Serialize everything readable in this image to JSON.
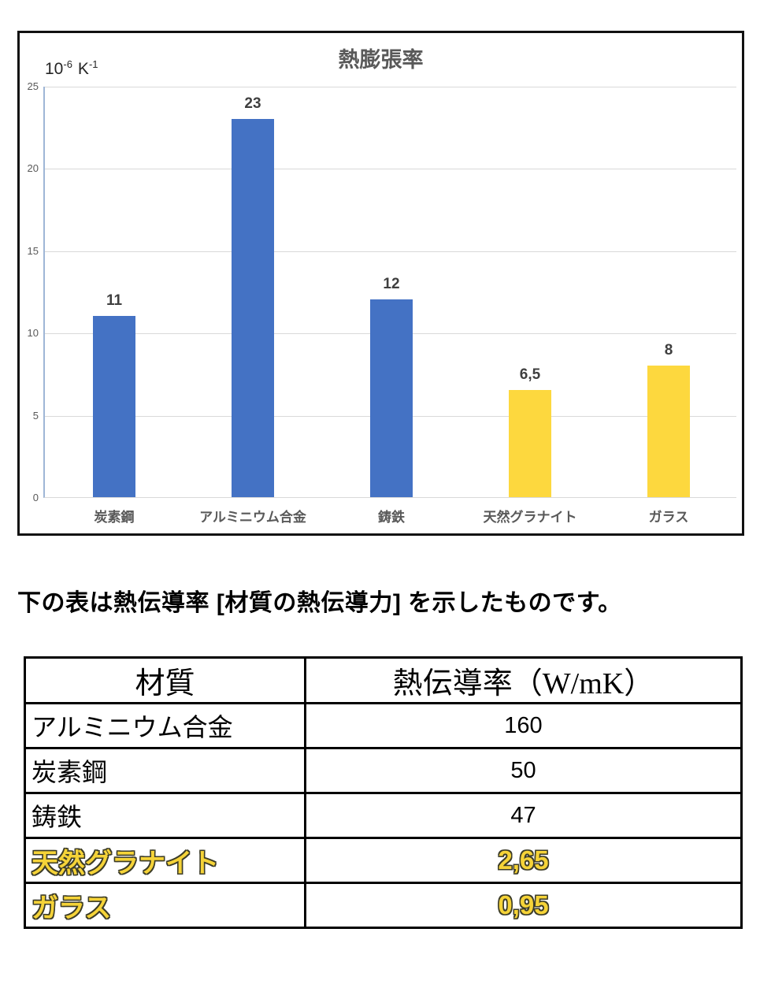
{
  "chart": {
    "unit": {
      "base": "10",
      "base_exp": "-6",
      "unit": "K",
      "unit_exp": "-1"
    }
  },
  "chart_data": {
    "type": "bar",
    "title": "熱膨張率",
    "ylabel": "10⁻⁶ K⁻¹",
    "xlabel": "",
    "categories": [
      "炭素鋼",
      "アルミニウム合金",
      "鋳鉄",
      "天然グラナイト",
      "ガラス"
    ],
    "values": [
      11,
      23,
      12,
      6.5,
      8
    ],
    "value_labels": [
      "11",
      "23",
      "12",
      "6,5",
      "8"
    ],
    "bar_colors": [
      "#4472C4",
      "#4472C4",
      "#4472C4",
      "#FDD83E",
      "#FDD83E"
    ],
    "ylim": [
      0,
      25
    ],
    "yticks": [
      0,
      5,
      10,
      15,
      20,
      25
    ],
    "grid": true,
    "legend": false
  },
  "caption": "下の表は熱伝導率 [材質の熱伝導力] を示したものです。",
  "table": {
    "headers": [
      "材質",
      "熱伝導率（W/mK）"
    ],
    "rows": [
      {
        "material": "アルミニウム合金",
        "value": "160",
        "highlight": false
      },
      {
        "material": "炭素鋼",
        "value": "50",
        "highlight": false
      },
      {
        "material": "鋳鉄",
        "value": "47",
        "highlight": false
      },
      {
        "material": "天然グラナイト",
        "value": "2,65",
        "highlight": true
      },
      {
        "material": "ガラス",
        "value": "0,95",
        "highlight": true
      }
    ]
  },
  "colors": {
    "bar_blue": "#4472C4",
    "bar_yellow": "#FDD83E",
    "highlight_text": "#F5D338",
    "highlight_outline": "#3C3C28",
    "gridline": "#D9D9D9",
    "axis_line": "#9FB6D6",
    "chart_text": "#595959"
  }
}
